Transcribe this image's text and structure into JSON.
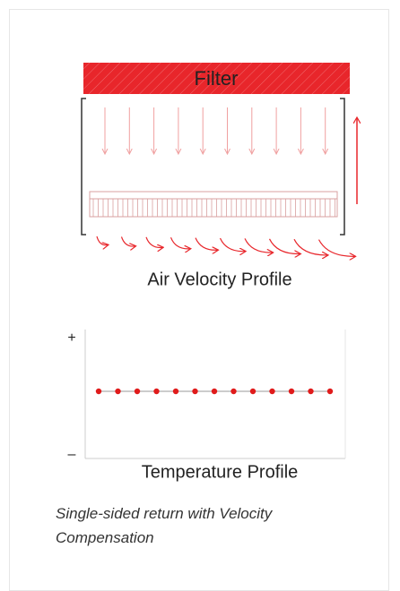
{
  "diagram": {
    "filter_label": "Filter",
    "velocity_title": "Air Velocity Profile",
    "plus_label": "+",
    "minus_label": "–",
    "temperature_title": "Temperature Profile"
  },
  "caption": "Single-sided return with Velocity Compensation"
}
